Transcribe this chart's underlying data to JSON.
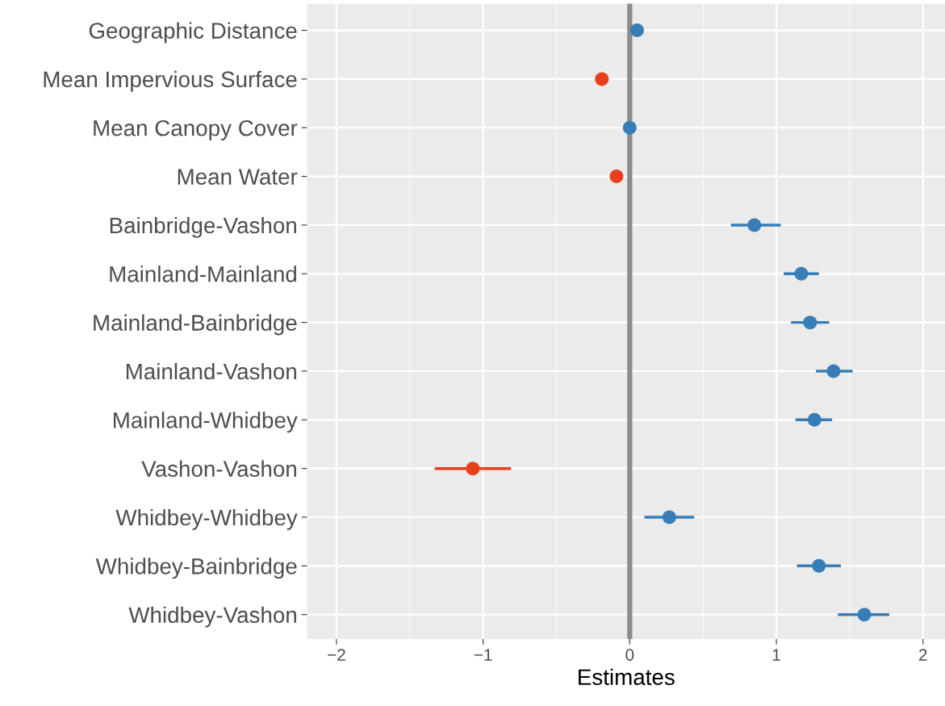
{
  "chart_data": {
    "type": "scatter",
    "orientation": "horizontal",
    "xlabel": "Estimates",
    "categories": [
      "Geographic Distance",
      "Mean Impervious Surface",
      "Mean Canopy Cover",
      "Mean Water",
      "Bainbridge-Vashon",
      "Mainland-Mainland",
      "Mainland-Bainbridge",
      "Mainland-Vashon",
      "Mainland-Whidbey",
      "Vashon-Vashon",
      "Whidbey-Whidbey",
      "Whidbey-Bainbridge",
      "Whidbey-Vashon"
    ],
    "values": [
      0.05,
      -0.19,
      0.0,
      -0.09,
      0.85,
      1.17,
      1.23,
      1.39,
      1.26,
      -1.07,
      0.27,
      1.29,
      1.6
    ],
    "errors": [
      null,
      null,
      null,
      null,
      [
        0.69,
        1.03
      ],
      [
        1.05,
        1.29
      ],
      [
        1.1,
        1.36
      ],
      [
        1.27,
        1.52
      ],
      [
        1.13,
        1.38
      ],
      [
        -1.33,
        -0.81
      ],
      [
        0.1,
        0.44
      ],
      [
        1.14,
        1.44
      ],
      [
        1.42,
        1.77
      ]
    ],
    "colors": [
      "#377eb8",
      "#e8401c",
      "#377eb8",
      "#e8401c",
      "#377eb8",
      "#377eb8",
      "#377eb8",
      "#377eb8",
      "#377eb8",
      "#e8401c",
      "#377eb8",
      "#377eb8",
      "#377eb8"
    ],
    "xlim": [
      -2.2,
      2.15
    ],
    "xticks": [
      {
        "value": -2,
        "label": "−2"
      },
      {
        "value": -1,
        "label": "−1"
      },
      0,
      1,
      2
    ],
    "ref_lines": [
      {
        "axis": "x",
        "value": 0,
        "color": "#8c8c8c"
      }
    ],
    "grid": true,
    "marker": "circle"
  }
}
